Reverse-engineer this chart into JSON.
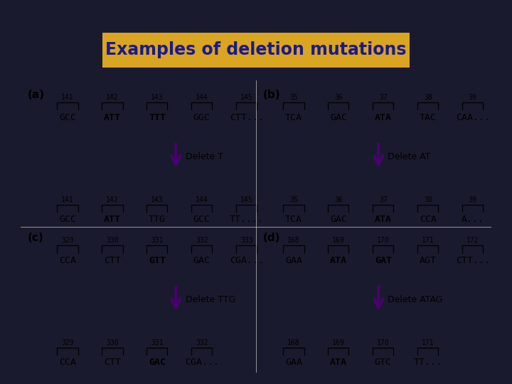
{
  "title": "Examples of deletion mutations",
  "title_bg": "#DAA520",
  "title_color": "#1a1a8c",
  "bg_color": "#1a1a2e",
  "panel_bg": "#FFFFFF",
  "arrow_color": "#4B0070",
  "panels": {
    "a": {
      "label": "(a)",
      "numbers_before": [
        "141",
        "142",
        "143",
        "144",
        "145"
      ],
      "seq_before": [
        [
          "GCC",
          false
        ],
        [
          "ATT",
          true
        ],
        [
          "TTT",
          true
        ],
        [
          "GGC",
          false
        ],
        [
          "CTT...",
          false
        ]
      ],
      "delete_label_plain": "Delete ",
      "delete_label_bold": "T",
      "numbers_after": [
        "141",
        "142",
        "143",
        "144",
        "145"
      ],
      "seq_after": [
        [
          "GCC",
          false
        ],
        [
          "ATT",
          true
        ],
        [
          "TTG",
          false
        ],
        [
          "GCC",
          false
        ],
        [
          "TT....",
          false
        ]
      ]
    },
    "b": {
      "label": "(b)",
      "numbers_before": [
        "35",
        "36",
        "37",
        "38",
        "39"
      ],
      "seq_before": [
        [
          "TCA",
          false
        ],
        [
          "GAC",
          false
        ],
        [
          "ATA",
          true
        ],
        [
          "TAC",
          false
        ],
        [
          "CAA...",
          false
        ]
      ],
      "delete_label_plain": "Delete ",
      "delete_label_bold": "AT",
      "numbers_after": [
        "35",
        "36",
        "37",
        "38",
        "39"
      ],
      "seq_after": [
        [
          "TCA",
          false
        ],
        [
          "GAC",
          false
        ],
        [
          "ATA",
          true
        ],
        [
          "CCA",
          false
        ],
        [
          "A...",
          false
        ]
      ]
    },
    "c": {
      "label": "(c)",
      "numbers_before": [
        "329",
        "330",
        "331",
        "332",
        "333"
      ],
      "seq_before": [
        [
          "CCA",
          false
        ],
        [
          "CTT",
          false
        ],
        [
          "GTT",
          true
        ],
        [
          "GAC",
          false
        ],
        [
          "CGA...",
          false
        ]
      ],
      "delete_label_plain": "Delete ",
      "delete_label_bold": "TTG",
      "numbers_after": [
        "329",
        "330",
        "331",
        "332"
      ],
      "seq_after": [
        [
          "CCA",
          false
        ],
        [
          "CTT",
          false
        ],
        [
          "GAC",
          true
        ],
        [
          "CGA...",
          false
        ]
      ]
    },
    "d": {
      "label": "(d)",
      "numbers_before": [
        "168",
        "169",
        "170",
        "171",
        "172"
      ],
      "seq_before": [
        [
          "GAA",
          false
        ],
        [
          "ATA",
          true
        ],
        [
          "GAT",
          true
        ],
        [
          "AGT",
          false
        ],
        [
          "CTT...",
          false
        ]
      ],
      "delete_label_plain": "Delete ",
      "delete_label_bold": "ATAG",
      "numbers_after": [
        "168",
        "169",
        "170",
        "171"
      ],
      "seq_after": [
        [
          "GAA",
          false
        ],
        [
          "ATA",
          true
        ],
        [
          "GTC",
          false
        ],
        [
          "TT...",
          false
        ]
      ]
    }
  }
}
